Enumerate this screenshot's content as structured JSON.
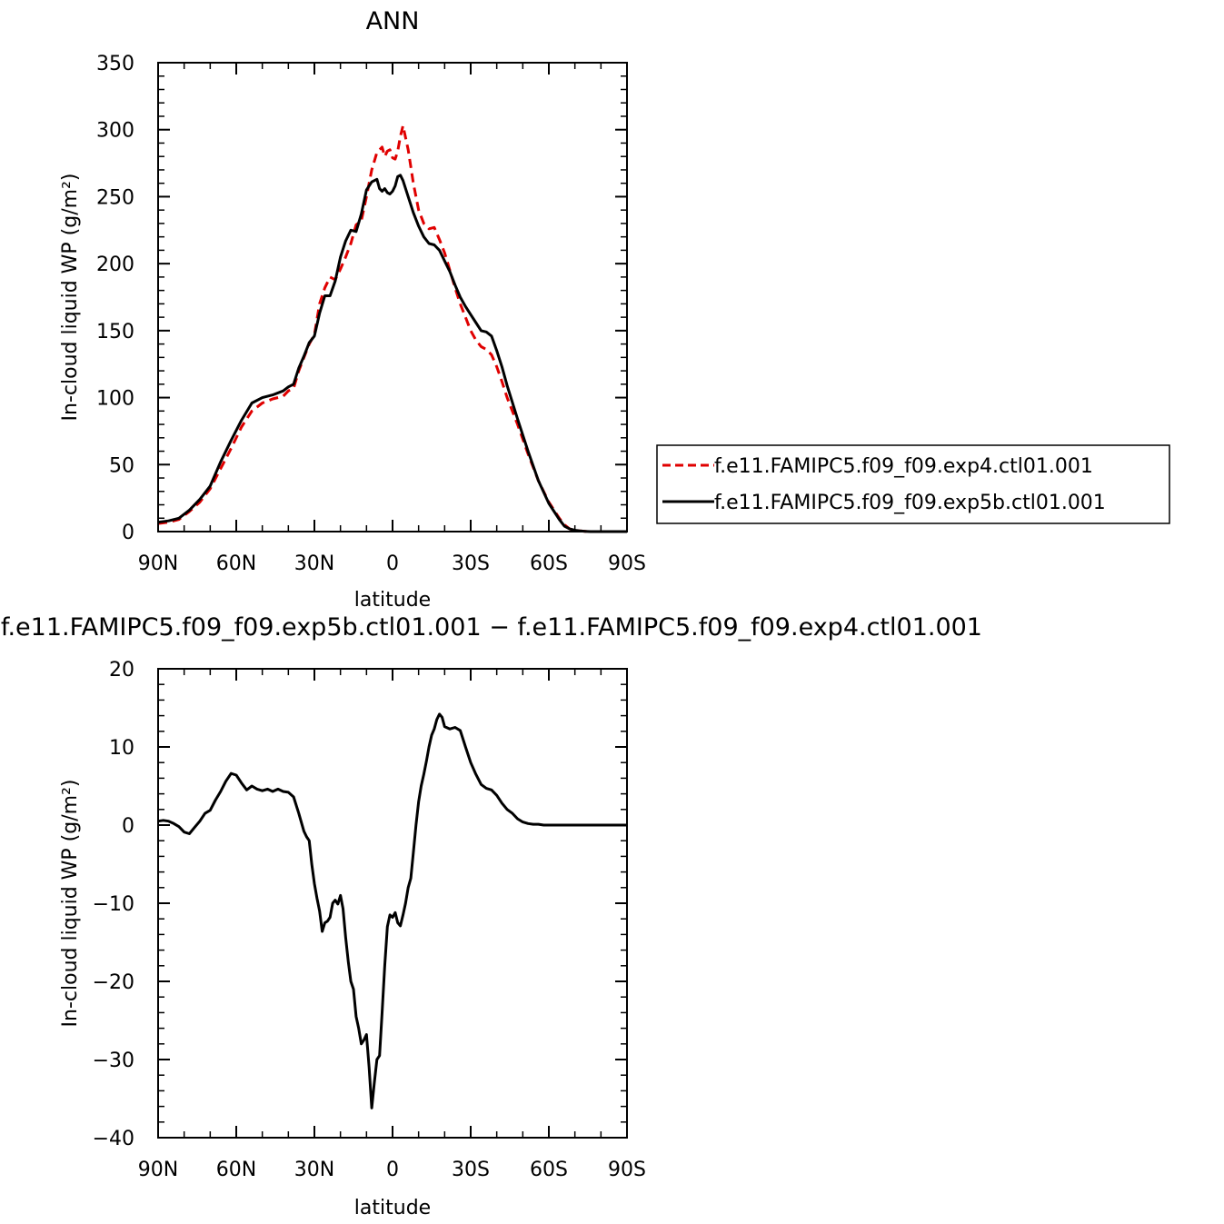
{
  "chart_data": [
    {
      "type": "line",
      "title": "ANN",
      "xlabel": "latitude",
      "ylabel": "In-cloud liquid WP (g/m²)",
      "xlim": [
        90,
        -90
      ],
      "ylim": [
        0,
        350
      ],
      "xticks": [
        {
          "value": 90,
          "label": "90N"
        },
        {
          "value": 60,
          "label": "60N"
        },
        {
          "value": 30,
          "label": "30N"
        },
        {
          "value": 0,
          "label": "0"
        },
        {
          "value": -30,
          "label": "30S"
        },
        {
          "value": -60,
          "label": "60S"
        },
        {
          "value": -90,
          "label": "90S"
        }
      ],
      "yticks": [
        0,
        50,
        100,
        150,
        200,
        250,
        300,
        350
      ],
      "grid": false,
      "legend": "right",
      "series": [
        {
          "name": "f.e11.FAMIPC5.f09_f09.exp4.ctl01.001",
          "color": "#e00000",
          "style": "dashed",
          "x": [
            90,
            86,
            82,
            78,
            74,
            70,
            66,
            62,
            58,
            54,
            50,
            46,
            42,
            40,
            38,
            36,
            34,
            32,
            30,
            28,
            26,
            24,
            22,
            20,
            18,
            16,
            14,
            12,
            10,
            8,
            6,
            5,
            4,
            3,
            2,
            1,
            0,
            -1,
            -2,
            -3,
            -4,
            -6,
            -8,
            -10,
            -12,
            -14,
            -16,
            -18,
            -20,
            -22,
            -24,
            -26,
            -28,
            -30,
            -32,
            -34,
            -36,
            -38,
            -40,
            -42,
            -44,
            -48,
            -52,
            -56,
            -60,
            -64,
            -66,
            -68,
            -70,
            -72,
            -74,
            -76,
            -78,
            -80,
            -85,
            -90
          ],
          "y": [
            6,
            7,
            9,
            15,
            22,
            32,
            47,
            62,
            78,
            90,
            96,
            99,
            101,
            105,
            107,
            120,
            130,
            140,
            147,
            170,
            182,
            190,
            188,
            196,
            205,
            215,
            229,
            232,
            250,
            270,
            283,
            285,
            287,
            280,
            284,
            285,
            279,
            278,
            284,
            295,
            303,
            285,
            260,
            240,
            230,
            226,
            227,
            218,
            208,
            195,
            182,
            170,
            160,
            150,
            143,
            138,
            136,
            132,
            123,
            112,
            100,
            80,
            58,
            38,
            22,
            10,
            5,
            2,
            1,
            0.5,
            0.2,
            0,
            0,
            0,
            0,
            0
          ]
        },
        {
          "name": "f.e11.FAMIPC5.f09_f09.exp5b.ctl01.001",
          "color": "#000000",
          "style": "solid",
          "x": [
            90,
            86,
            82,
            78,
            74,
            70,
            66,
            62,
            58,
            54,
            50,
            46,
            42,
            40,
            38,
            36,
            34,
            32,
            30,
            28,
            26,
            24,
            22,
            20,
            18,
            16,
            14,
            12,
            10,
            8,
            6,
            5,
            4,
            3,
            2,
            1,
            0,
            -1,
            -2,
            -3,
            -4,
            -6,
            -8,
            -10,
            -12,
            -14,
            -16,
            -18,
            -20,
            -22,
            -24,
            -26,
            -28,
            -30,
            -32,
            -34,
            -36,
            -38,
            -40,
            -42,
            -44,
            -48,
            -52,
            -56,
            -60,
            -64,
            -66,
            -68,
            -70,
            -72,
            -74,
            -76,
            -78,
            -80,
            -85,
            -90
          ],
          "y": [
            7,
            8,
            10,
            16,
            24,
            34,
            52,
            68,
            83,
            96,
            100,
            102,
            105,
            108,
            110,
            122,
            131,
            141,
            146,
            163,
            176,
            176,
            187,
            205,
            217,
            225,
            224,
            237,
            255,
            261,
            263,
            256,
            254,
            256,
            253,
            252,
            254,
            258,
            265,
            266,
            262,
            250,
            238,
            228,
            220,
            215,
            214,
            210,
            202,
            194,
            184,
            175,
            168,
            162,
            156,
            150,
            149,
            146,
            135,
            123,
            109,
            84,
            60,
            38,
            21,
            9,
            4,
            2,
            1,
            0.5,
            0.2,
            0,
            0,
            0,
            0,
            0
          ]
        }
      ]
    },
    {
      "type": "line",
      "title": "f.e11.FAMIPC5.f09_f09.exp5b.ctl01.001  −  f.e11.FAMIPC5.f09_f09.exp4.ctl01.001",
      "xlabel": "latitude",
      "ylabel": "In-cloud liquid WP (g/m²)",
      "xlim": [
        90,
        -90
      ],
      "ylim": [
        -40,
        20
      ],
      "xticks": [
        {
          "value": 90,
          "label": "90N"
        },
        {
          "value": 60,
          "label": "60N"
        },
        {
          "value": 30,
          "label": "30N"
        },
        {
          "value": 0,
          "label": "0"
        },
        {
          "value": -30,
          "label": "30S"
        },
        {
          "value": -60,
          "label": "60S"
        },
        {
          "value": -90,
          "label": "90S"
        }
      ],
      "yticks": [
        -40,
        -30,
        -20,
        -10,
        0,
        10,
        20
      ],
      "grid": false,
      "series": [
        {
          "color": "#000000",
          "style": "solid",
          "x": [
            90,
            88,
            86,
            84,
            82,
            80,
            78,
            76,
            74,
            72,
            70,
            68,
            66,
            64,
            62,
            60,
            58,
            56,
            54,
            52,
            50,
            48,
            46,
            44,
            42,
            40,
            38,
            36,
            34,
            33,
            32,
            31,
            30,
            29,
            28,
            27,
            26,
            25,
            24,
            23,
            22,
            21,
            20,
            19,
            18,
            17,
            16,
            15,
            14,
            13,
            12,
            11,
            10,
            9,
            8,
            7,
            6,
            5,
            4,
            3,
            2,
            1,
            0,
            -1,
            -2,
            -3,
            -4,
            -5,
            -6,
            -7,
            -8,
            -9,
            -10,
            -11,
            -12,
            -13,
            -14,
            -15,
            -16,
            -17,
            -18,
            -19,
            -20,
            -22,
            -24,
            -26,
            -28,
            -30,
            -32,
            -34,
            -36,
            -38,
            -40,
            -42,
            -44,
            -46,
            -48,
            -50,
            -52,
            -54,
            -56,
            -58,
            -60,
            -62,
            -64,
            -66,
            -68,
            -70,
            -72,
            -75,
            -80,
            -85,
            -90
          ],
          "y": [
            0.5,
            0.6,
            0.5,
            0.2,
            -0.2,
            -0.9,
            -1.1,
            -0.3,
            0.5,
            1.5,
            1.9,
            3.2,
            4.3,
            5.6,
            6.6,
            6.4,
            5.4,
            4.5,
            5.0,
            4.6,
            4.4,
            4.6,
            4.3,
            4.6,
            4.3,
            4.2,
            3.6,
            1.5,
            -0.8,
            -1.5,
            -2.0,
            -5.0,
            -7.5,
            -9.4,
            -11.0,
            -13.6,
            -12.5,
            -12.3,
            -11.8,
            -10.0,
            -9.6,
            -10.1,
            -9.0,
            -10.7,
            -14.4,
            -17.5,
            -20.0,
            -21.0,
            -24.5,
            -26.0,
            -28.0,
            -27.5,
            -26.8,
            -31.0,
            -36.2,
            -33.0,
            -30.0,
            -29.5,
            -24.0,
            -18.0,
            -13.0,
            -11.5,
            -11.8,
            -11.2,
            -12.5,
            -12.9,
            -11.5,
            -10.0,
            -8.0,
            -6.8,
            -3.5,
            0.0,
            3.0,
            5.0,
            6.5,
            8.2,
            10.0,
            11.5,
            12.3,
            13.5,
            14.2,
            13.8,
            12.6,
            12.3,
            12.5,
            12.1,
            10.0,
            8.0,
            6.5,
            5.2,
            4.7,
            4.5,
            3.8,
            2.8,
            2.0,
            1.5,
            0.8,
            0.4,
            0.2,
            0.1,
            0.1,
            0.0,
            0.0,
            0.0,
            0.0,
            0.0,
            0.0,
            0.0,
            0.0,
            0.0,
            0.0,
            0.0,
            0.0
          ]
        }
      ]
    }
  ]
}
